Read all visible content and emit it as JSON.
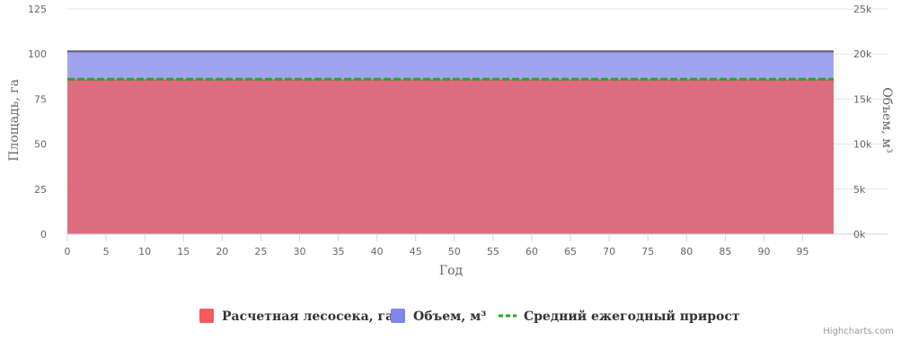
{
  "chart_data": {
    "type": "area",
    "x": {
      "label": "Год",
      "range": [
        0,
        99
      ],
      "ticks": [
        0,
        5,
        10,
        15,
        20,
        25,
        30,
        35,
        40,
        45,
        50,
        55,
        60,
        65,
        70,
        75,
        80,
        85,
        90,
        95
      ]
    },
    "y_left": {
      "label": "Площадь, га",
      "range": [
        0,
        125
      ],
      "ticks": [
        0,
        25,
        50,
        75,
        100,
        125
      ]
    },
    "y_right": {
      "label": "Объем, м³",
      "range": [
        0,
        25000
      ],
      "ticks": [
        0,
        5000,
        10000,
        15000,
        20000,
        25000
      ],
      "tick_labels": [
        "0k",
        "5k",
        "10k",
        "15k",
        "20k",
        "25k"
      ]
    },
    "series": [
      {
        "name": "Расчетная лесосека, га",
        "type": "area",
        "axis": "left",
        "color": "#f45b5b",
        "x": [
          0,
          99
        ],
        "y": [
          85.5,
          85.5
        ]
      },
      {
        "name": "Объем, м³",
        "type": "area",
        "axis": "right",
        "color": "#8085e9",
        "x": [
          0,
          99
        ],
        "y": [
          20300,
          20300
        ]
      },
      {
        "name": "Средний ежегодный прирост",
        "type": "line",
        "dash": "dashed",
        "axis": "right",
        "color": "#24a824",
        "x": [
          0,
          99
        ],
        "y": [
          17200,
          17200
        ]
      }
    ],
    "legend": "bottom-center",
    "grid": "horizontal"
  },
  "credits": "Highcharts.com"
}
